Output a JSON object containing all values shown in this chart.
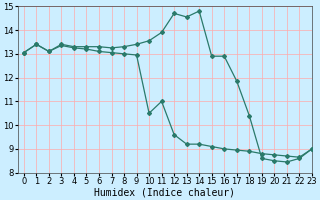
{
  "xlabel": "Humidex (Indice chaleur)",
  "background_color": "#cceeff",
  "grid_color": "#ffaaaa",
  "line_color": "#2a7a6a",
  "x_line1": [
    0,
    1,
    2,
    3,
    4,
    5,
    6,
    7,
    8,
    9,
    10,
    11,
    12,
    13,
    14,
    15,
    16,
    17,
    18,
    19,
    20,
    21,
    22,
    23
  ],
  "y_line1": [
    13.05,
    13.4,
    13.1,
    13.4,
    13.3,
    13.3,
    13.3,
    13.25,
    13.3,
    13.4,
    13.55,
    13.9,
    14.7,
    14.55,
    14.8,
    12.9,
    12.9,
    11.85,
    10.4,
    8.6,
    8.5,
    8.45,
    8.6,
    9.0
  ],
  "x_line2": [
    0,
    1,
    2,
    3,
    4,
    5,
    6,
    7,
    8,
    9,
    10,
    11,
    12,
    13,
    14,
    15,
    16,
    17,
    18,
    19,
    20,
    21,
    22,
    23
  ],
  "y_line2": [
    13.05,
    13.4,
    13.1,
    13.35,
    13.25,
    13.2,
    13.1,
    13.05,
    13.0,
    12.95,
    10.5,
    11.0,
    9.6,
    9.2,
    9.2,
    9.1,
    9.0,
    8.95,
    8.9,
    8.8,
    8.75,
    8.7,
    8.65,
    9.0
  ],
  "ylim": [
    8,
    15
  ],
  "xlim": [
    -0.5,
    23
  ],
  "yticks": [
    8,
    9,
    10,
    11,
    12,
    13,
    14,
    15
  ],
  "xticks": [
    0,
    1,
    2,
    3,
    4,
    5,
    6,
    7,
    8,
    9,
    10,
    11,
    12,
    13,
    14,
    15,
    16,
    17,
    18,
    19,
    20,
    21,
    22,
    23
  ],
  "marker": "D",
  "marker_size": 2.0,
  "linewidth": 0.9,
  "fontsize_label": 7,
  "fontsize_tick": 6
}
